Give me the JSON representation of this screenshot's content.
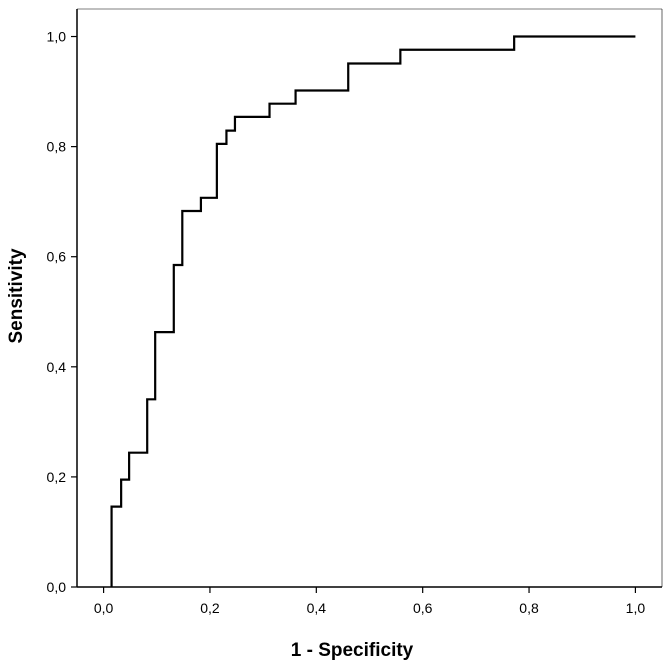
{
  "chart_data": {
    "type": "line",
    "title": "",
    "xlabel": "1 - Specificity",
    "ylabel": "Sensitivity",
    "xlim": [
      -0.05,
      1.05
    ],
    "ylim": [
      0.0,
      1.05
    ],
    "grid": false,
    "x_ticks": [
      0.0,
      0.2,
      0.4,
      0.6,
      0.8,
      1.0
    ],
    "y_ticks": [
      0.0,
      0.2,
      0.4,
      0.6,
      0.8,
      1.0
    ],
    "x_tick_labels": [
      "0,0",
      "0,2",
      "0,4",
      "0,6",
      "0,8",
      "1,0"
    ],
    "y_tick_labels": [
      "0,0",
      "0,2",
      "0,4",
      "0,6",
      "0,8",
      "1,0"
    ],
    "series": [
      {
        "color": "#000000",
        "step": true,
        "x": [
          0.015,
          0.015,
          0.033,
          0.033,
          0.048,
          0.048,
          0.082,
          0.082,
          0.097,
          0.097,
          0.132,
          0.132,
          0.148,
          0.148,
          0.183,
          0.183,
          0.213,
          0.213,
          0.231,
          0.231,
          0.247,
          0.247,
          0.312,
          0.312,
          0.361,
          0.361,
          0.46,
          0.46,
          0.558,
          0.558,
          0.772,
          0.772,
          1.0
        ],
        "y": [
          0.0,
          0.146,
          0.146,
          0.195,
          0.195,
          0.244,
          0.244,
          0.341,
          0.341,
          0.463,
          0.463,
          0.585,
          0.585,
          0.683,
          0.683,
          0.707,
          0.707,
          0.805,
          0.805,
          0.829,
          0.829,
          0.854,
          0.854,
          0.878,
          0.878,
          0.902,
          0.902,
          0.951,
          0.951,
          0.976,
          0.976,
          1.0,
          1.0
        ]
      }
    ]
  }
}
